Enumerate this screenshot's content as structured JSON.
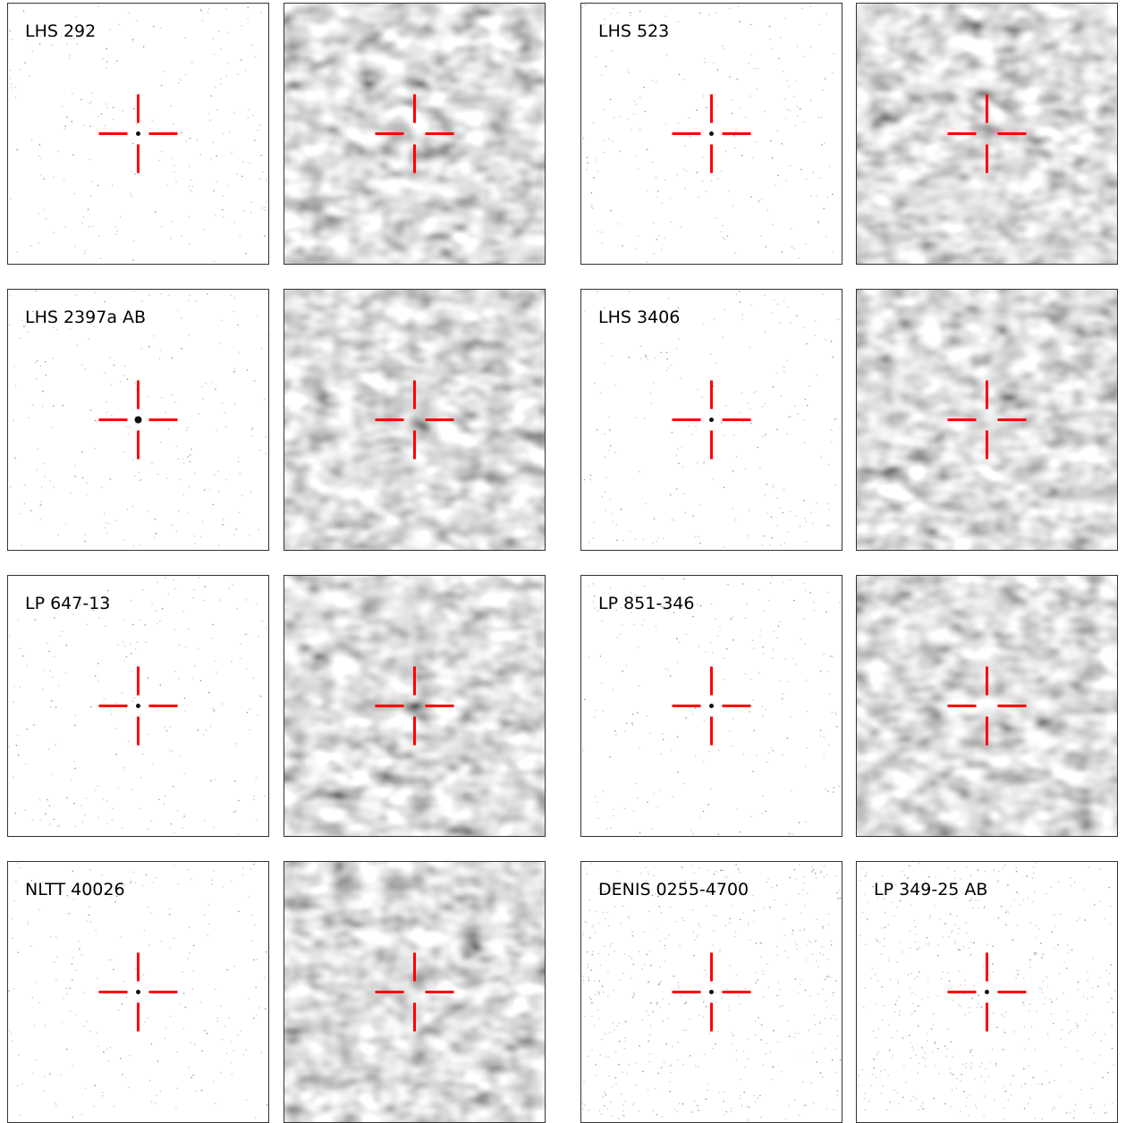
{
  "labels": [
    "LHS 292",
    "LHS 523",
    "LHS 2397a AB",
    "LHS 3406",
    "LP 647-13",
    "LP 851-346",
    "NLTT 40026",
    "DENIS 0255-4700",
    "LP 349-25 AB"
  ]
}
